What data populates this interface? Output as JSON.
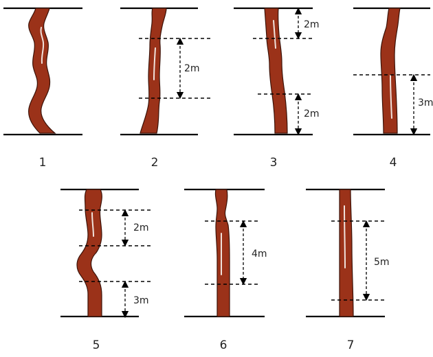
{
  "colors": {
    "trunk": "#9b3219",
    "trunk_edge": "#3a1208",
    "line": "#000000"
  },
  "panels": [
    {
      "label": "1",
      "dimensions": []
    },
    {
      "label": "2",
      "dimensions": [
        "2m"
      ]
    },
    {
      "label": "3",
      "dimensions": [
        "2m",
        "2m"
      ]
    },
    {
      "label": "4",
      "dimensions": [
        "3m"
      ]
    },
    {
      "label": "5",
      "dimensions": [
        "2m",
        "3m"
      ]
    },
    {
      "label": "6",
      "dimensions": [
        "4m"
      ]
    },
    {
      "label": "7",
      "dimensions": [
        "5m"
      ]
    }
  ]
}
